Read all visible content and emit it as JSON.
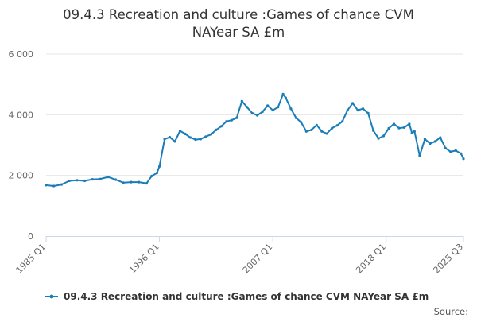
{
  "chart_data": {
    "type": "line",
    "title_lines": [
      "09.4.3 Recreation and culture :Games of chance CVM",
      "NAYear SA £m"
    ],
    "xlabel": "",
    "ylabel": "",
    "x_tick_labels": [
      "1985 Q1",
      "1996 Q1",
      "2007 Q1",
      "2018 Q1",
      "2025 Q3"
    ],
    "x_range": [
      "1985 Q1",
      "2025 Q3"
    ],
    "y_ticks": [
      0,
      2000,
      4000,
      6000
    ],
    "y_tick_labels": [
      "0",
      "2 000",
      "4 000",
      "6 000"
    ],
    "ylim": [
      0,
      6000
    ],
    "grid": "horizontal",
    "legend_position": "bottom-center",
    "series": [
      {
        "name": "09.4.3 Recreation and culture :Games of chance CVM NAYear SA £m",
        "color": "#1a7db8",
        "x": [
          "1985 Q1",
          "1985 Q4",
          "1986 Q3",
          "1987 Q2",
          "1988 Q1",
          "1988 Q4",
          "1989 Q3",
          "1990 Q2",
          "1991 Q1",
          "1991 Q4",
          "1992 Q3",
          "1993 Q2",
          "1994 Q1",
          "1994 Q4",
          "1995 Q2",
          "1995 Q4",
          "1996 Q1",
          "1996 Q3",
          "1997 Q1",
          "1997 Q3",
          "1998 Q1",
          "1998 Q3",
          "1999 Q1",
          "1999 Q3",
          "2000 Q1",
          "2000 Q3",
          "2001 Q1",
          "2001 Q3",
          "2002 Q1",
          "2002 Q3",
          "2003 Q1",
          "2003 Q3",
          "2004 Q1",
          "2004 Q3",
          "2005 Q1",
          "2005 Q3",
          "2006 Q1",
          "2006 Q3",
          "2007 Q1",
          "2007 Q3",
          "2008 Q1",
          "2008 Q2",
          "2008 Q4",
          "2009 Q2",
          "2009 Q4",
          "2010 Q2",
          "2010 Q4",
          "2011 Q2",
          "2011 Q4",
          "2012 Q2",
          "2012 Q4",
          "2013 Q2",
          "2013 Q4",
          "2014 Q2",
          "2014 Q4",
          "2015 Q2",
          "2015 Q4",
          "2016 Q2",
          "2016 Q4",
          "2017 Q2",
          "2017 Q4",
          "2018 Q2",
          "2018 Q4",
          "2019 Q2",
          "2019 Q4",
          "2020 Q2",
          "2020 Q3",
          "2020 Q4",
          "2021 Q2",
          "2021 Q4",
          "2022 Q2",
          "2022 Q4",
          "2023 Q2",
          "2023 Q4",
          "2024 Q2",
          "2024 Q4",
          "2025 Q2",
          "2025 Q3"
        ],
        "values": [
          1680,
          1650,
          1700,
          1820,
          1840,
          1820,
          1870,
          1880,
          1950,
          1860,
          1760,
          1780,
          1780,
          1740,
          1980,
          2080,
          2300,
          3200,
          3260,
          3120,
          3470,
          3370,
          3250,
          3180,
          3200,
          3280,
          3350,
          3500,
          3620,
          3780,
          3820,
          3900,
          4450,
          4250,
          4050,
          3980,
          4100,
          4300,
          4150,
          4250,
          4680,
          4560,
          4200,
          3900,
          3750,
          3450,
          3500,
          3660,
          3450,
          3380,
          3560,
          3650,
          3780,
          4150,
          4380,
          4150,
          4200,
          4050,
          3480,
          3220,
          3300,
          3550,
          3700,
          3560,
          3580,
          3700,
          3400,
          3450,
          2650,
          3200,
          3050,
          3120,
          3250,
          2900,
          2780,
          2820,
          2720,
          2550
        ]
      }
    ]
  },
  "credit": "Source:"
}
